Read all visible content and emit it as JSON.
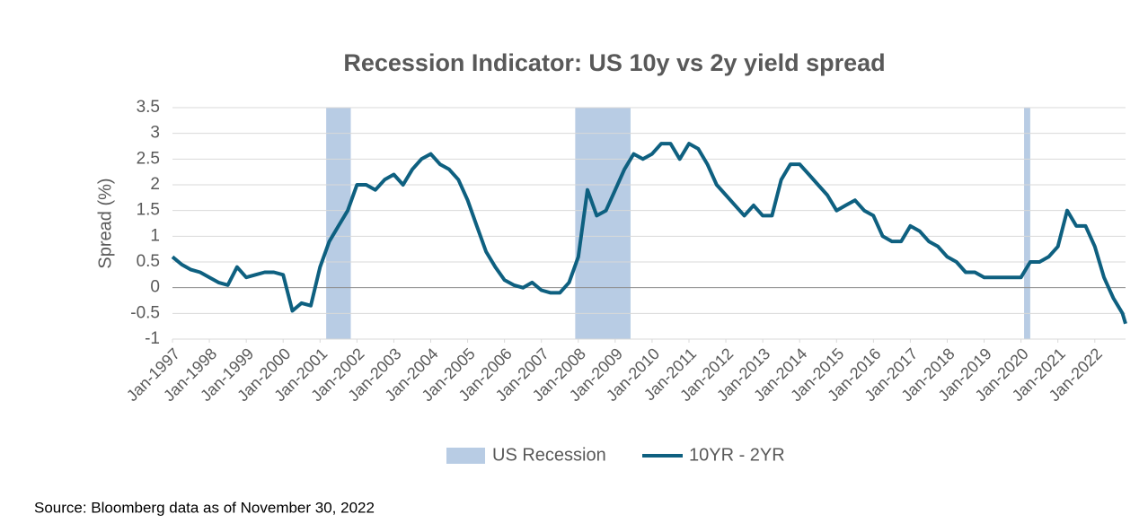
{
  "chart_data": {
    "type": "line",
    "title": "Recession Indicator: US 10y vs 2y yield spread",
    "y_label": "Spread (%)",
    "source": "Source: Bloomberg data as of November 30, 2022",
    "xlim": [
      "1997-01",
      "2022-11"
    ],
    "ylim": [
      -1,
      3.5
    ],
    "yticks": [
      -1,
      -0.5,
      0,
      0.5,
      1,
      1.5,
      2,
      2.5,
      3,
      3.5
    ],
    "grid": true,
    "xticks": [
      {
        "value": "1997-01",
        "label": "Jan-1997"
      },
      {
        "value": "1998-01",
        "label": "Jan-1998"
      },
      {
        "value": "1999-01",
        "label": "Jan-1999"
      },
      {
        "value": "2000-01",
        "label": "Jan-2000"
      },
      {
        "value": "2001-01",
        "label": "Jan-2001"
      },
      {
        "value": "2002-01",
        "label": "Jan-2002"
      },
      {
        "value": "2003-01",
        "label": "Jan-2003"
      },
      {
        "value": "2004-01",
        "label": "Jan-2004"
      },
      {
        "value": "2005-01",
        "label": "Jan-2005"
      },
      {
        "value": "2006-01",
        "label": "Jan-2006"
      },
      {
        "value": "2007-01",
        "label": "Jan-2007"
      },
      {
        "value": "2008-01",
        "label": "Jan-2008"
      },
      {
        "value": "2009-01",
        "label": "Jan-2009"
      },
      {
        "value": "2010-01",
        "label": "Jan-2010"
      },
      {
        "value": "2011-01",
        "label": "Jan-2011"
      },
      {
        "value": "2012-01",
        "label": "Jan-2012"
      },
      {
        "value": "2013-01",
        "label": "Jan-2013"
      },
      {
        "value": "2014-01",
        "label": "Jan-2014"
      },
      {
        "value": "2015-01",
        "label": "Jan-2015"
      },
      {
        "value": "2016-01",
        "label": "Jan-2016"
      },
      {
        "value": "2017-01",
        "label": "Jan-2017"
      },
      {
        "value": "2018-01",
        "label": "Jan-2018"
      },
      {
        "value": "2019-01",
        "label": "Jan-2019"
      },
      {
        "value": "2020-01",
        "label": "Jan-2020"
      },
      {
        "value": "2021-01",
        "label": "Jan-2021"
      },
      {
        "value": "2022-01",
        "label": "Jan-2022"
      }
    ],
    "recession": {
      "name": "US Recession",
      "color": "#b8cce4",
      "periods": [
        [
          "2001-03",
          "2001-11"
        ],
        [
          "2007-12",
          "2009-06"
        ],
        [
          "2020-02",
          "2020-04"
        ]
      ]
    },
    "x": [
      "1997-01",
      "1997-04",
      "1997-07",
      "1997-10",
      "1998-01",
      "1998-04",
      "1998-07",
      "1998-10",
      "1999-01",
      "1999-04",
      "1999-07",
      "1999-10",
      "2000-01",
      "2000-04",
      "2000-07",
      "2000-10",
      "2001-01",
      "2001-04",
      "2001-07",
      "2001-10",
      "2002-01",
      "2002-04",
      "2002-07",
      "2002-10",
      "2003-01",
      "2003-04",
      "2003-07",
      "2003-10",
      "2004-01",
      "2004-04",
      "2004-07",
      "2004-10",
      "2005-01",
      "2005-04",
      "2005-07",
      "2005-10",
      "2006-01",
      "2006-04",
      "2006-07",
      "2006-10",
      "2007-01",
      "2007-04",
      "2007-07",
      "2007-10",
      "2008-01",
      "2008-04",
      "2008-07",
      "2008-10",
      "2009-01",
      "2009-04",
      "2009-07",
      "2009-10",
      "2010-01",
      "2010-04",
      "2010-07",
      "2010-10",
      "2011-01",
      "2011-04",
      "2011-07",
      "2011-10",
      "2012-01",
      "2012-04",
      "2012-07",
      "2012-10",
      "2013-01",
      "2013-04",
      "2013-07",
      "2013-10",
      "2014-01",
      "2014-04",
      "2014-07",
      "2014-10",
      "2015-01",
      "2015-04",
      "2015-07",
      "2015-10",
      "2016-01",
      "2016-04",
      "2016-07",
      "2016-10",
      "2017-01",
      "2017-04",
      "2017-07",
      "2017-10",
      "2018-01",
      "2018-04",
      "2018-07",
      "2018-10",
      "2019-01",
      "2019-04",
      "2019-07",
      "2019-10",
      "2020-01",
      "2020-04",
      "2020-07",
      "2020-10",
      "2021-01",
      "2021-04",
      "2021-07",
      "2021-10",
      "2022-01",
      "2022-04",
      "2022-07",
      "2022-10",
      "2022-11"
    ],
    "series": [
      {
        "name": "10YR - 2YR",
        "color": "#0e6080",
        "values": [
          0.6,
          0.45,
          0.35,
          0.3,
          0.2,
          0.1,
          0.05,
          0.4,
          0.2,
          0.25,
          0.3,
          0.3,
          0.25,
          -0.45,
          -0.3,
          -0.35,
          0.4,
          0.9,
          1.2,
          1.5,
          2.0,
          2.0,
          1.9,
          2.1,
          2.2,
          2.0,
          2.3,
          2.5,
          2.6,
          2.4,
          2.3,
          2.1,
          1.7,
          1.2,
          0.7,
          0.4,
          0.15,
          0.05,
          0.0,
          0.1,
          -0.05,
          -0.1,
          -0.1,
          0.1,
          0.6,
          1.9,
          1.4,
          1.5,
          1.9,
          2.3,
          2.6,
          2.5,
          2.6,
          2.8,
          2.8,
          2.5,
          2.8,
          2.7,
          2.4,
          2.0,
          1.8,
          1.6,
          1.4,
          1.6,
          1.4,
          1.4,
          2.1,
          2.4,
          2.4,
          2.2,
          2.0,
          1.8,
          1.5,
          1.6,
          1.7,
          1.5,
          1.4,
          1.0,
          0.9,
          0.9,
          1.2,
          1.1,
          0.9,
          0.8,
          0.6,
          0.5,
          0.3,
          0.3,
          0.2,
          0.2,
          0.2,
          0.2,
          0.2,
          0.5,
          0.5,
          0.6,
          0.8,
          1.5,
          1.2,
          1.2,
          0.8,
          0.2,
          -0.2,
          -0.5,
          -0.7
        ]
      }
    ]
  }
}
